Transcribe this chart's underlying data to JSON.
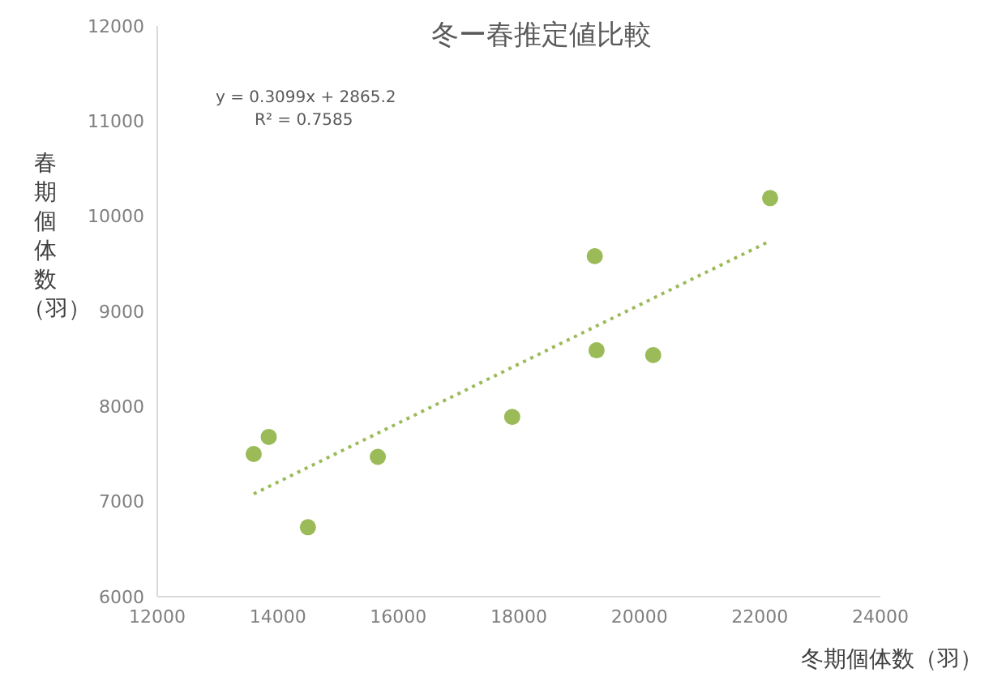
{
  "chart_data": {
    "type": "scatter",
    "title": "冬ー春推定値比較",
    "xlabel": "冬期個体数（羽）",
    "ylabel": "春期個体数（羽）",
    "xlim": [
      12000,
      24000
    ],
    "xticks": [
      12000,
      14000,
      16000,
      18000,
      20000,
      22000,
      24000
    ],
    "ylim": [
      6000,
      12000
    ],
    "yticks": [
      6000,
      7000,
      8000,
      9000,
      10000,
      11000,
      12000
    ],
    "annotations": [
      "y = 0.3099x + 2865.2",
      "R² = 0.7585"
    ],
    "series": [
      {
        "color": "#9bbb59",
        "marker": "circle",
        "x": [
          13600,
          13850,
          14500,
          15660,
          17890,
          19260,
          19290,
          20230,
          22170
        ],
        "values": [
          7500,
          7680,
          6730,
          7470,
          7890,
          9580,
          8590,
          8540,
          10190
        ]
      },
      {
        "type": "line",
        "color": "#9bbb59",
        "marker": "none",
        "line_style": "dotted",
        "x": [
          13600,
          22170
        ],
        "values": [
          7080,
          9740
        ]
      }
    ]
  }
}
